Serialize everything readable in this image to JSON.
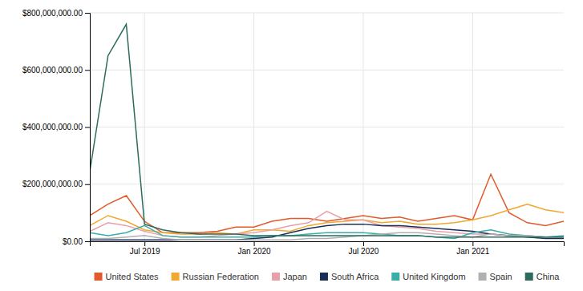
{
  "chart_data": {
    "type": "line",
    "categories": [
      null,
      null,
      null,
      "Jul 2019",
      null,
      null,
      null,
      null,
      null,
      "Jan 2020",
      null,
      null,
      null,
      null,
      null,
      "Jul 2020",
      null,
      null,
      null,
      null,
      null,
      "Jan 2021",
      null,
      null,
      null,
      null,
      null
    ],
    "series": [
      {
        "name": "United States",
        "color": "#e05a2b",
        "values": [
          90000000,
          130000000,
          160000000,
          70000000,
          30000000,
          30000000,
          30000000,
          35000000,
          50000000,
          50000000,
          70000000,
          80000000,
          80000000,
          70000000,
          80000000,
          90000000,
          80000000,
          85000000,
          70000000,
          80000000,
          90000000,
          75000000,
          235000000,
          100000000,
          65000000,
          55000000,
          70000000
        ]
      },
      {
        "name": "Russian Federation",
        "color": "#f0a830",
        "values": [
          55000000,
          90000000,
          70000000,
          40000000,
          30000000,
          25000000,
          25000000,
          30000000,
          25000000,
          40000000,
          40000000,
          35000000,
          55000000,
          65000000,
          70000000,
          75000000,
          65000000,
          70000000,
          60000000,
          60000000,
          65000000,
          75000000,
          90000000,
          110000000,
          130000000,
          110000000,
          100000000
        ]
      },
      {
        "name": "Japan",
        "color": "#e8a0a8",
        "values": [
          35000000,
          65000000,
          55000000,
          35000000,
          20000000,
          15000000,
          15000000,
          20000000,
          25000000,
          30000000,
          40000000,
          55000000,
          65000000,
          105000000,
          75000000,
          75000000,
          55000000,
          50000000,
          45000000,
          35000000,
          30000000,
          25000000,
          25000000,
          20000000,
          20000000,
          15000000,
          15000000
        ]
      },
      {
        "name": "South Africa",
        "color": "#1a2e5a",
        "values": [
          5000000,
          5000000,
          5000000,
          5000000,
          5000000,
          5000000,
          5000000,
          5000000,
          5000000,
          10000000,
          15000000,
          30000000,
          45000000,
          55000000,
          60000000,
          60000000,
          55000000,
          55000000,
          50000000,
          45000000,
          40000000,
          35000000,
          25000000,
          20000000,
          15000000,
          10000000,
          10000000
        ]
      },
      {
        "name": "United Kingdom",
        "color": "#3aada8",
        "values": [
          30000000,
          20000000,
          30000000,
          55000000,
          20000000,
          15000000,
          15000000,
          15000000,
          15000000,
          15000000,
          20000000,
          20000000,
          25000000,
          30000000,
          30000000,
          30000000,
          25000000,
          20000000,
          20000000,
          15000000,
          10000000,
          30000000,
          40000000,
          25000000,
          20000000,
          15000000,
          20000000
        ]
      },
      {
        "name": "Spain",
        "color": "#b0b0b0",
        "values": [
          10000000,
          10000000,
          15000000,
          20000000,
          10000000,
          5000000,
          5000000,
          5000000,
          5000000,
          5000000,
          5000000,
          5000000,
          10000000,
          10000000,
          15000000,
          20000000,
          25000000,
          30000000,
          30000000,
          25000000,
          20000000,
          15000000,
          25000000,
          20000000,
          20000000,
          15000000,
          15000000
        ]
      },
      {
        "name": "China",
        "color": "#2d6b5e",
        "values": [
          245000000,
          650000000,
          760000000,
          60000000,
          40000000,
          30000000,
          25000000,
          25000000,
          25000000,
          20000000,
          20000000,
          20000000,
          20000000,
          20000000,
          20000000,
          20000000,
          20000000,
          20000000,
          20000000,
          15000000,
          15000000,
          15000000,
          15000000,
          15000000,
          15000000,
          15000000,
          15000000
        ]
      }
    ],
    "ylim": [
      0,
      800000000
    ],
    "yticks": [
      {
        "value": 0,
        "label": "$0.00"
      },
      {
        "value": 200000000,
        "label": "$200,000,000.00"
      },
      {
        "value": 400000000,
        "label": "$400,000,000.00"
      },
      {
        "value": 600000000,
        "label": "$600,000,000.00"
      },
      {
        "value": 800000000,
        "label": "$800,000,000.00"
      }
    ],
    "grid": true,
    "legend": "bottom"
  }
}
